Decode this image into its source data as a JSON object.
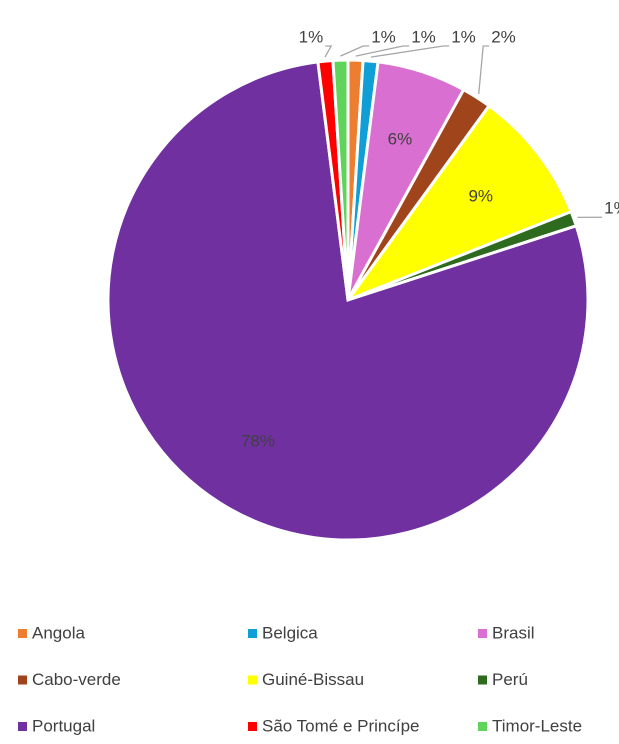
{
  "chart_data": {
    "type": "pie",
    "categories": [
      "Angola",
      "Belgica",
      "Brasil",
      "Cabo-verde",
      "Guiné-Bissau",
      "Perú",
      "Portugal",
      "São Tomé e Princípe",
      "Timor-Leste"
    ],
    "values": [
      1,
      1,
      6,
      2,
      9,
      1,
      78,
      1,
      1
    ],
    "value_labels": [
      "1%",
      "1%",
      "6%",
      "2%",
      "9%",
      "1%",
      "78%",
      "1%",
      "1%"
    ],
    "colors": [
      "#ed7d31",
      "#0f9ed5",
      "#d96fd0",
      "#a0441c",
      "#ffff00",
      "#2e6b1f",
      "#7030a0",
      "#ff0000",
      "#5fd35a"
    ],
    "legend": "bottom"
  }
}
